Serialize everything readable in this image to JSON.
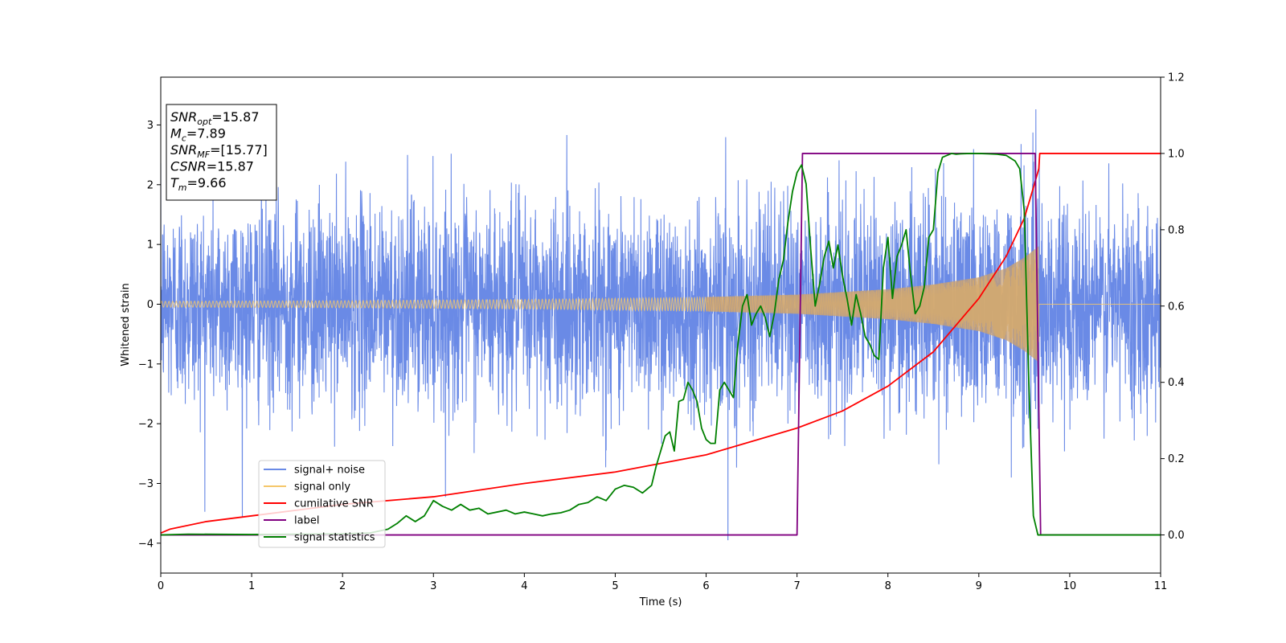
{
  "chart_data": {
    "type": "line",
    "xlabel": "Time (s)",
    "ylabel": "Whitened strain",
    "xlim": [
      0,
      11
    ],
    "ylim": [
      -4.5,
      3.8
    ],
    "y2lim": [
      -0.1,
      1.2
    ],
    "x_ticks": [
      0,
      1,
      2,
      3,
      4,
      5,
      6,
      7,
      8,
      9,
      10,
      11
    ],
    "y_ticks": [
      -4,
      -3,
      -2,
      -1,
      0,
      1,
      2,
      3
    ],
    "y2_ticks": [
      0.0,
      0.2,
      0.4,
      0.6,
      0.8,
      1.0,
      1.2
    ],
    "annotation_lines": [
      {
        "var": "SNR",
        "sub": "opt",
        "value": "=15.87"
      },
      {
        "var": "M",
        "sub": "c",
        "value": "=7.89"
      },
      {
        "var": "SNR",
        "sub": "MF",
        "value": "=[15.77]"
      },
      {
        "var": "CSNR",
        "sub": "",
        "value": "=15.87"
      },
      {
        "var": "T",
        "sub": "m",
        "value": "=9.66"
      }
    ],
    "legend": {
      "placement": "lower-left",
      "entries": [
        {
          "label": "signal+ noise",
          "color": "#6a8ae6"
        },
        {
          "label": "signal only",
          "color": "#f5c76a"
        },
        {
          "label": "cumilative SNR",
          "color": "#ff0000"
        },
        {
          "label": "label",
          "color": "#800080"
        },
        {
          "label": "signal statistics",
          "color": "#008000"
        }
      ]
    },
    "series": [
      {
        "name": "signal+ noise",
        "axis": "left",
        "color": "#6a8ae6",
        "noise_std": 1.0,
        "noise_range": [
          -3.7,
          3.45
        ],
        "extra_spikes": [
          {
            "x": 6.24,
            "y": -3.95
          }
        ],
        "note_renderer": "dense gaussian noise band"
      },
      {
        "name": "signal only",
        "axis": "left",
        "color": "#f5c76a",
        "envelope": {
          "x": [
            0,
            2,
            4,
            5,
            6,
            7,
            8,
            8.5,
            9,
            9.3,
            9.5,
            9.6,
            9.66
          ],
          "amp": [
            0.05,
            0.06,
            0.08,
            0.1,
            0.12,
            0.16,
            0.25,
            0.33,
            0.45,
            0.6,
            0.78,
            0.9,
            0.97
          ]
        },
        "merger_time": 9.66
      },
      {
        "name": "cumilative SNR",
        "axis": "right",
        "color": "#ff0000",
        "x": [
          0,
          0.1,
          0.5,
          1,
          2,
          3,
          4,
          5,
          6,
          7,
          7.5,
          8,
          8.5,
          9,
          9.3,
          9.5,
          9.6,
          9.66,
          9.67,
          11
        ],
        "y": [
          0.005,
          0.015,
          0.035,
          0.05,
          0.08,
          0.1,
          0.135,
          0.165,
          0.21,
          0.28,
          0.325,
          0.39,
          0.48,
          0.62,
          0.73,
          0.83,
          0.91,
          0.96,
          1.0,
          1.0
        ]
      },
      {
        "name": "label",
        "axis": "right",
        "color": "#800080",
        "x": [
          0,
          7.0,
          7.06,
          9.62,
          9.68,
          11
        ],
        "y": [
          0,
          0,
          1,
          1,
          0,
          0
        ]
      },
      {
        "name": "signal statistics",
        "axis": "right",
        "color": "#008000",
        "x": [
          0,
          0.3,
          1,
          2,
          2.3,
          2.5,
          2.6,
          2.7,
          2.8,
          2.9,
          3.0,
          3.1,
          3.2,
          3.3,
          3.4,
          3.5,
          3.6,
          3.7,
          3.8,
          3.9,
          4.0,
          4.1,
          4.2,
          4.3,
          4.4,
          4.5,
          4.6,
          4.7,
          4.8,
          4.9,
          5.0,
          5.1,
          5.2,
          5.3,
          5.4,
          5.45,
          5.5,
          5.55,
          5.6,
          5.65,
          5.7,
          5.75,
          5.8,
          5.85,
          5.9,
          5.95,
          6.0,
          6.05,
          6.1,
          6.15,
          6.2,
          6.25,
          6.3,
          6.35,
          6.4,
          6.45,
          6.5,
          6.55,
          6.6,
          6.65,
          6.7,
          6.75,
          6.8,
          6.85,
          6.9,
          6.95,
          7.0,
          7.05,
          7.1,
          7.15,
          7.2,
          7.25,
          7.3,
          7.35,
          7.4,
          7.45,
          7.5,
          7.55,
          7.6,
          7.65,
          7.7,
          7.75,
          7.8,
          7.85,
          7.9,
          7.95,
          8.0,
          8.05,
          8.1,
          8.15,
          8.2,
          8.25,
          8.3,
          8.35,
          8.4,
          8.45,
          8.5,
          8.55,
          8.6,
          8.65,
          8.7,
          8.75,
          8.8,
          8.9,
          9.0,
          9.1,
          9.2,
          9.3,
          9.4,
          9.45,
          9.5,
          9.55,
          9.6,
          9.65,
          9.7,
          10,
          11
        ],
        "y": [
          0,
          0.002,
          0.001,
          0.003,
          0.005,
          0.015,
          0.03,
          0.05,
          0.035,
          0.05,
          0.09,
          0.075,
          0.065,
          0.08,
          0.065,
          0.07,
          0.055,
          0.06,
          0.065,
          0.055,
          0.06,
          0.055,
          0.05,
          0.055,
          0.058,
          0.065,
          0.08,
          0.085,
          0.1,
          0.09,
          0.12,
          0.13,
          0.125,
          0.11,
          0.13,
          0.18,
          0.22,
          0.26,
          0.27,
          0.22,
          0.35,
          0.355,
          0.4,
          0.38,
          0.35,
          0.28,
          0.25,
          0.24,
          0.24,
          0.38,
          0.4,
          0.38,
          0.36,
          0.5,
          0.6,
          0.63,
          0.55,
          0.58,
          0.6,
          0.57,
          0.52,
          0.58,
          0.67,
          0.72,
          0.82,
          0.9,
          0.95,
          0.97,
          0.92,
          0.75,
          0.6,
          0.66,
          0.73,
          0.77,
          0.7,
          0.76,
          0.68,
          0.62,
          0.55,
          0.63,
          0.58,
          0.52,
          0.5,
          0.47,
          0.46,
          0.7,
          0.78,
          0.62,
          0.73,
          0.76,
          0.8,
          0.68,
          0.58,
          0.6,
          0.65,
          0.78,
          0.8,
          0.95,
          0.99,
          0.995,
          1.0,
          0.998,
          0.999,
          1.0,
          1.0,
          0.999,
          0.998,
          0.995,
          0.98,
          0.96,
          0.85,
          0.4,
          0.05,
          0.0,
          0.0,
          0.0,
          0.0
        ]
      }
    ]
  }
}
